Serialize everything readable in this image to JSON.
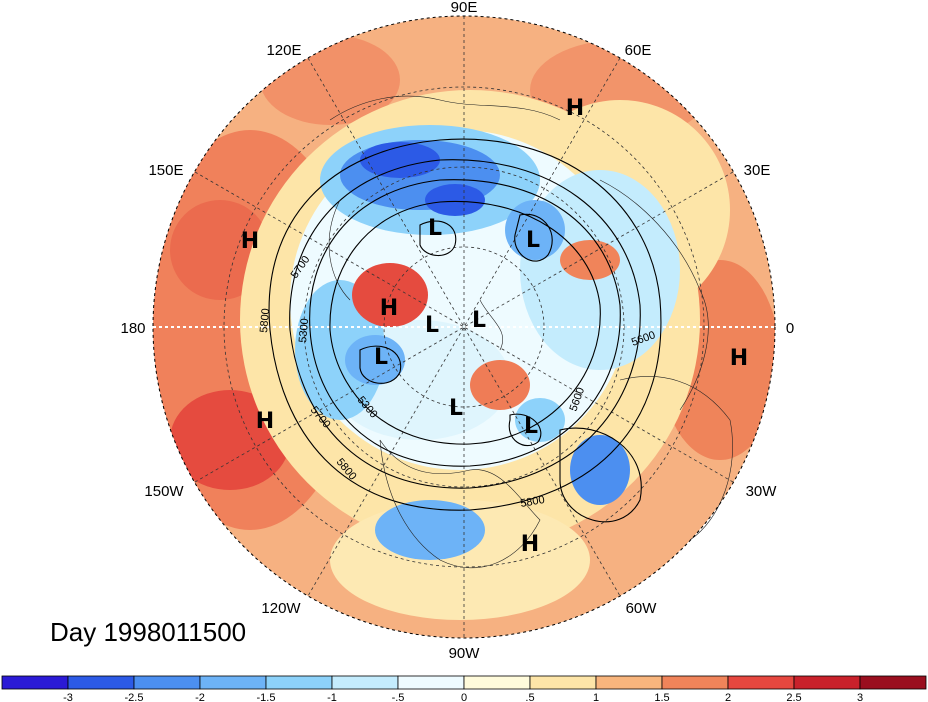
{
  "title": "Day 1998011500",
  "longitude_labels": {
    "top": "90E",
    "upper_left": "120E",
    "upper_right": "60E",
    "left_upper": "150E",
    "right_upper": "30E",
    "left": "180",
    "right": "0",
    "left_lower": "150W",
    "right_lower": "30W",
    "lower_left": "120W",
    "lower_right": "60W",
    "bottom": "90W"
  },
  "pressure_centers": [
    {
      "type": "H",
      "label": "H"
    },
    {
      "type": "H",
      "label": "H"
    },
    {
      "type": "H",
      "label": "H"
    },
    {
      "type": "H",
      "label": "H"
    },
    {
      "type": "H",
      "label": "H"
    },
    {
      "type": "H",
      "label": "H"
    },
    {
      "type": "L",
      "label": "L"
    },
    {
      "type": "L",
      "label": "L"
    },
    {
      "type": "L",
      "label": "L"
    },
    {
      "type": "L",
      "label": "L"
    },
    {
      "type": "L",
      "label": "L"
    },
    {
      "type": "L",
      "label": "L"
    },
    {
      "type": "L",
      "label": "L"
    }
  ],
  "contour_labels": [
    "5700",
    "5800",
    "5300",
    "5300",
    "5700",
    "5800",
    "5600",
    "5600",
    "5800"
  ],
  "colorbar": {
    "ticks": [
      "-3",
      "-2.5",
      "-2",
      "-1.5",
      "-1",
      "-.5",
      "0",
      ".5",
      "1",
      "1.5",
      "2",
      "2.5",
      "3"
    ],
    "colors": [
      "#2b1ad6",
      "#2c5ae6",
      "#4c8ff0",
      "#6db3f7",
      "#8dd2fa",
      "#c4ecfd",
      "#eefbff",
      "#fffbdb",
      "#fde5a8",
      "#f8b57d",
      "#f0845a",
      "#e6473f",
      "#c9212b",
      "#9a0f1f"
    ]
  }
}
